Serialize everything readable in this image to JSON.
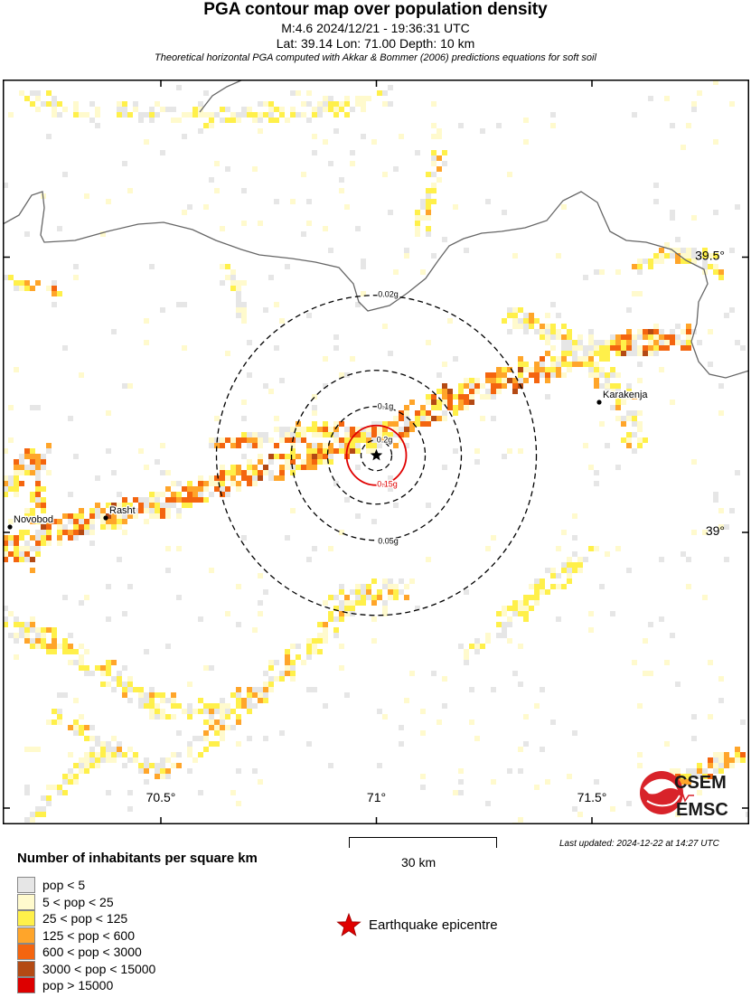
{
  "header": {
    "title": "PGA contour map over population density",
    "line1": "M:4.6 2024/12/21 - 19:36:31 UTC",
    "line2": "Lat: 39.14 Lon: 71.00 Depth: 10 km",
    "line3": "Theoretical horizontal PGA computed with Akkar & Bommer (2006) predictions equations for soft soil"
  },
  "axes": {
    "lon_ticks": [
      "70.5°",
      "71°",
      "71.5°"
    ],
    "lat_ticks": [
      "39.5°",
      "39°"
    ]
  },
  "epicentre": {
    "lat": 39.14,
    "lon": 71.0
  },
  "contours": [
    {
      "label": "0.02g",
      "color": "#000000",
      "style": "dashed"
    },
    {
      "label": "0.05g",
      "color": "#000000",
      "style": "dashed"
    },
    {
      "label": "0.1g",
      "color": "#000000",
      "style": "dashed"
    },
    {
      "label": "0.15g",
      "color": "#e00000",
      "style": "solid"
    },
    {
      "label": "0.2g",
      "color": "#000000",
      "style": "dashed"
    }
  ],
  "places": [
    {
      "name": "Novobod"
    },
    {
      "name": "Rasht"
    },
    {
      "name": "Karakenja"
    }
  ],
  "legend": {
    "title": "Number of inhabitants per square km",
    "items": [
      {
        "label": "pop < 5",
        "color": "#e6e6e6"
      },
      {
        "label": "5 < pop < 25",
        "color": "#fffacd"
      },
      {
        "label": "25 < pop < 125",
        "color": "#fff04a"
      },
      {
        "label": "125 < pop < 600",
        "color": "#ffa52a"
      },
      {
        "label": "600 < pop < 3000",
        "color": "#f4650f"
      },
      {
        "label": "3000 < pop < 15000",
        "color": "#b44a14"
      },
      {
        "label": "pop > 15000",
        "color": "#dd0000"
      }
    ],
    "epicentre_label": "Earthquake epicentre"
  },
  "scale": {
    "label": "30 km"
  },
  "last_updated": "Last updated: 2024-12-22 at 14:27 UTC",
  "logo": {
    "line1": "CSEM",
    "line2": "EMSC"
  }
}
